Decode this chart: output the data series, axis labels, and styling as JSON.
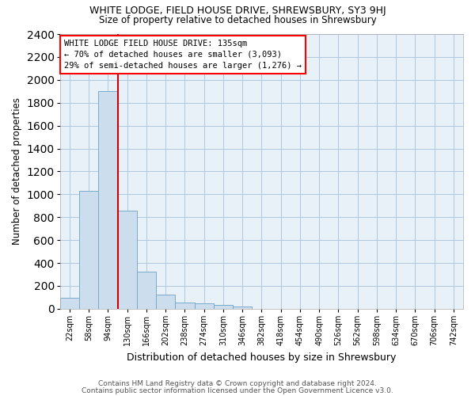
{
  "title1": "WHITE LODGE, FIELD HOUSE DRIVE, SHREWSBURY, SY3 9HJ",
  "title2": "Size of property relative to detached houses in Shrewsbury",
  "xlabel": "Distribution of detached houses by size in Shrewsbury",
  "ylabel": "Number of detached properties",
  "footer1": "Contains HM Land Registry data © Crown copyright and database right 2024.",
  "footer2": "Contains public sector information licensed under the Open Government Licence v3.0.",
  "annotation_line1": "WHITE LODGE FIELD HOUSE DRIVE: 135sqm",
  "annotation_line2": "← 70% of detached houses are smaller (3,093)",
  "annotation_line3": "29% of semi-detached houses are larger (1,276) →",
  "bar_color": "#ccdded",
  "bar_edge_color": "#7aaacb",
  "line_color": "#cc0000",
  "grid_color": "#b0c8e0",
  "bg_color": "#e8f0f8",
  "categories": [
    "22sqm",
    "58sqm",
    "94sqm",
    "130sqm",
    "166sqm",
    "202sqm",
    "238sqm",
    "274sqm",
    "310sqm",
    "346sqm",
    "382sqm",
    "418sqm",
    "454sqm",
    "490sqm",
    "526sqm",
    "562sqm",
    "598sqm",
    "634sqm",
    "670sqm",
    "706sqm",
    "742sqm"
  ],
  "values": [
    95,
    1030,
    1900,
    860,
    325,
    125,
    57,
    50,
    35,
    20,
    0,
    0,
    0,
    0,
    0,
    0,
    0,
    0,
    0,
    0,
    0
  ],
  "red_line_index": 3,
  "ylim": [
    0,
    2400
  ],
  "yticks": [
    0,
    200,
    400,
    600,
    800,
    1000,
    1200,
    1400,
    1600,
    1800,
    2000,
    2200,
    2400
  ]
}
